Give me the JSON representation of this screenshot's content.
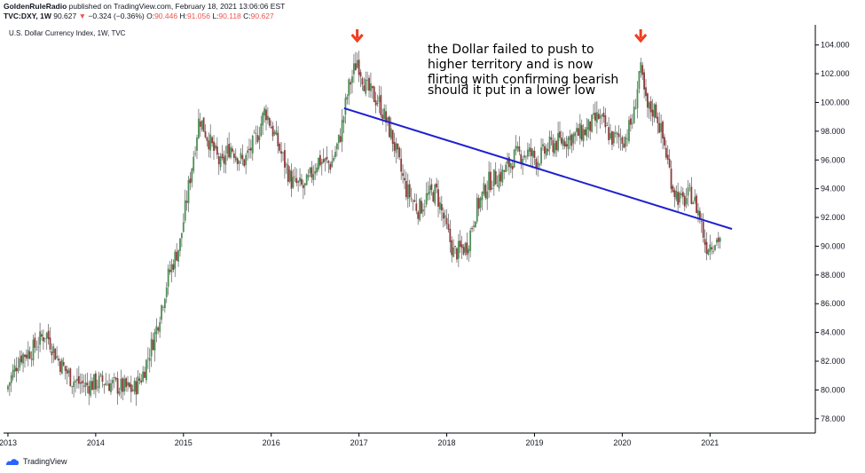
{
  "header": {
    "user": "GoldenRuleRadio",
    "published": " published on TradingView.com, February 18, 2021 13:06:06 EST",
    "symbol": "TVC:DXY, 1W",
    "price": "90.627",
    "arrow": "▼",
    "change": "−0.324 (−0.36%)",
    "o_label": "O:",
    "o_value": "90.446",
    "h_label": "H:",
    "h_value": "91.056",
    "l_label": "L:",
    "l_value": "90.118",
    "c_label": "C:",
    "c_value": "90.627"
  },
  "footer": {
    "brand": "TradingView"
  },
  "colors": {
    "up": "#26a69a",
    "down": "#ef5350",
    "candle_up": "#4f8f55",
    "candle_down": "#8e3b3b",
    "trendline": "#1f1fd1",
    "marker": "#f23b1e"
  },
  "chart_data": {
    "type": "candlestick",
    "title": "U.S. Dollar Currency Index, 1W, TVC",
    "x_range": [
      2012.95,
      2022.2
    ],
    "ylim": [
      77.0,
      105.4
    ],
    "y_ticks": [
      "78.000",
      "80.000",
      "82.000",
      "84.000",
      "86.000",
      "88.000",
      "90.000",
      "92.000",
      "94.000",
      "96.000",
      "98.000",
      "100.000",
      "102.000",
      "104.000"
    ],
    "x_ticks": [
      {
        "label": "2013",
        "x": 2013
      },
      {
        "label": "2014",
        "x": 2014
      },
      {
        "label": "2015",
        "x": 2015
      },
      {
        "label": "2016",
        "x": 2016
      },
      {
        "label": "2017",
        "x": 2017
      },
      {
        "label": "2018",
        "x": 2018
      },
      {
        "label": "2019",
        "x": 2019
      },
      {
        "label": "2020",
        "x": 2020
      },
      {
        "label": "2021",
        "x": 2021
      }
    ],
    "current_price": 90.627,
    "path": [
      [
        2013.0,
        80.0
      ],
      [
        2013.15,
        82.3
      ],
      [
        2013.3,
        82.8
      ],
      [
        2013.45,
        84.0
      ],
      [
        2013.6,
        82.0
      ],
      [
        2013.75,
        80.7
      ],
      [
        2013.9,
        80.3
      ],
      [
        2014.1,
        80.6
      ],
      [
        2014.3,
        80.2
      ],
      [
        2014.45,
        80.0
      ],
      [
        2014.55,
        81.0
      ],
      [
        2014.7,
        84.0
      ],
      [
        2014.85,
        88.0
      ],
      [
        2014.98,
        90.2
      ],
      [
        2015.1,
        95.0
      ],
      [
        2015.2,
        99.0
      ],
      [
        2015.3,
        97.5
      ],
      [
        2015.45,
        95.5
      ],
      [
        2015.55,
        97.0
      ],
      [
        2015.7,
        95.8
      ],
      [
        2015.85,
        97.5
      ],
      [
        2015.95,
        99.5
      ],
      [
        2016.1,
        97.0
      ],
      [
        2016.25,
        94.5
      ],
      [
        2016.4,
        94.0
      ],
      [
        2016.55,
        96.0
      ],
      [
        2016.7,
        95.7
      ],
      [
        2016.8,
        97.5
      ],
      [
        2016.9,
        101.0
      ],
      [
        2017.0,
        103.0
      ],
      [
        2017.1,
        101.0
      ],
      [
        2017.25,
        100.0
      ],
      [
        2017.4,
        97.5
      ],
      [
        2017.55,
        94.0
      ],
      [
        2017.7,
        92.5
      ],
      [
        2017.8,
        93.5
      ],
      [
        2017.9,
        93.8
      ],
      [
        2018.0,
        91.5
      ],
      [
        2018.1,
        89.5
      ],
      [
        2018.25,
        90.0
      ],
      [
        2018.35,
        92.5
      ],
      [
        2018.5,
        94.5
      ],
      [
        2018.65,
        95.0
      ],
      [
        2018.8,
        96.3
      ],
      [
        2018.95,
        96.5
      ],
      [
        2019.05,
        96.0
      ],
      [
        2019.2,
        97.0
      ],
      [
        2019.4,
        97.5
      ],
      [
        2019.6,
        98.0
      ],
      [
        2019.75,
        99.0
      ],
      [
        2019.9,
        97.5
      ],
      [
        2020.05,
        97.5
      ],
      [
        2020.15,
        99.0
      ],
      [
        2020.22,
        102.5
      ],
      [
        2020.3,
        99.5
      ],
      [
        2020.4,
        99.5
      ],
      [
        2020.5,
        97.0
      ],
      [
        2020.6,
        94.0
      ],
      [
        2020.7,
        93.0
      ],
      [
        2020.8,
        93.7
      ],
      [
        2020.9,
        92.2
      ],
      [
        2020.97,
        90.0
      ],
      [
        2021.05,
        90.3
      ],
      [
        2021.13,
        90.6
      ]
    ],
    "trendline": [
      [
        2016.83,
        99.6
      ],
      [
        2021.25,
        91.2
      ]
    ],
    "annotations": [
      {
        "id": "top-2017",
        "x": 2016.98
      },
      {
        "id": "top-2020",
        "x": 2020.21
      }
    ],
    "annotation_text": [
      "the Dollar failed to push to",
      "higher territory and is now",
      "flirting with confirming bearish",
      "should it put in a lower low"
    ]
  }
}
